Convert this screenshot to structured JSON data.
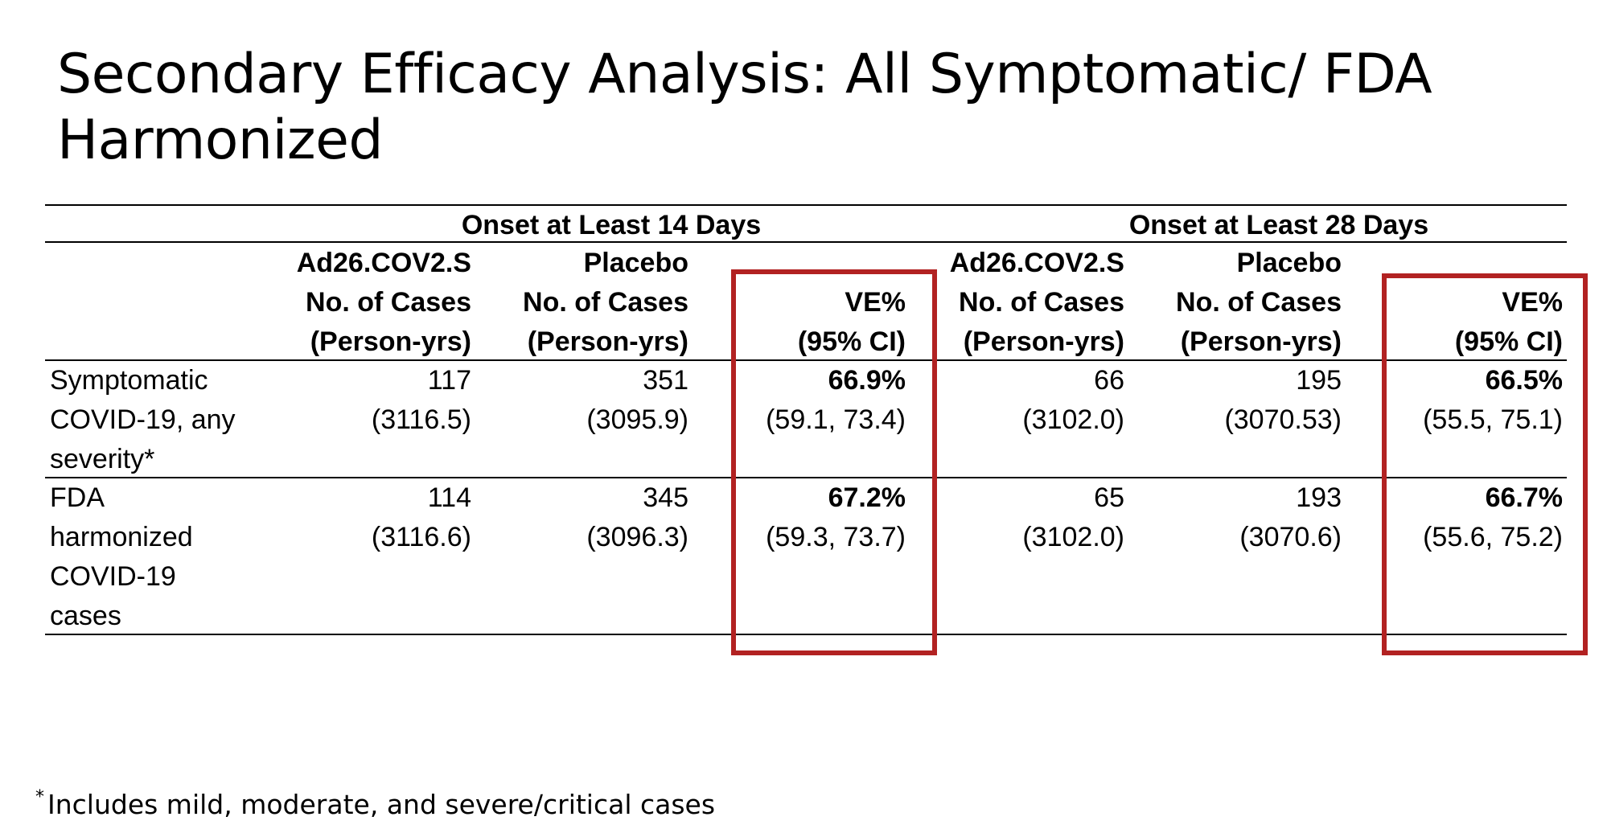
{
  "title": "Secondary Efficacy Analysis: All Symptomatic/ FDA Harmonized",
  "table": {
    "groups": [
      "Onset at Least 14 Days",
      "Onset at Least 28 Days"
    ],
    "column_headers": [
      [
        "Ad26.COV2.S",
        "No. of Cases",
        "(Person-yrs)"
      ],
      [
        "Placebo",
        "No. of Cases",
        "(Person-yrs)"
      ],
      [
        "VE%",
        "(95% CI)"
      ],
      [
        "Ad26.COV2.S",
        "No. of Cases",
        "(Person-yrs)"
      ],
      [
        "Placebo",
        "No. of Cases",
        "(Person-yrs)"
      ],
      [
        "VE%",
        "(95% CI)"
      ]
    ],
    "rows": [
      {
        "label": [
          "Symptomatic",
          "COVID-19, any",
          "severity*"
        ],
        "cells": [
          [
            "117",
            "(3116.5)"
          ],
          [
            "351",
            "(3095.9)"
          ],
          [
            "66.9%",
            "(59.1, 73.4)"
          ],
          [
            "66",
            "(3102.0)"
          ],
          [
            "195",
            "(3070.53)"
          ],
          [
            "66.5%",
            "(55.5, 75.1)"
          ]
        ]
      },
      {
        "label": [
          "FDA",
          "harmonized",
          "COVID-19",
          "cases"
        ],
        "cells": [
          [
            "114",
            "(3116.6)"
          ],
          [
            "345",
            "(3096.3)"
          ],
          [
            "67.2%",
            "(59.3, 73.7)"
          ],
          [
            "65",
            "(3102.0)"
          ],
          [
            "193",
            "(3070.6)"
          ],
          [
            "66.7%",
            "(55.6, 75.2)"
          ]
        ]
      }
    ]
  },
  "footnote": {
    "marker": "*",
    "text": "Includes mild, moderate, and severe/critical cases"
  },
  "colors": {
    "highlight_box": "#b22222",
    "rules": "#000000"
  }
}
